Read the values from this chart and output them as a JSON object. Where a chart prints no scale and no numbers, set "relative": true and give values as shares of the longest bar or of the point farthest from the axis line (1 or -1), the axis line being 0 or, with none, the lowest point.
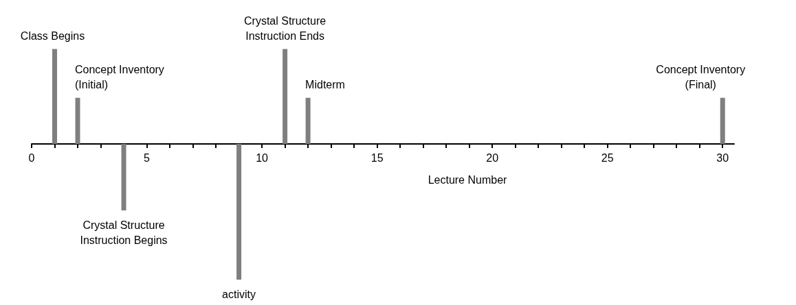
{
  "chart_data": {
    "type": "bar",
    "relative": true,
    "xlabel": "Lecture Number",
    "x": [
      1,
      2,
      4,
      9,
      11,
      12,
      30
    ],
    "values": [
      0.7,
      0.34,
      -0.49,
      -1,
      0.7,
      0.34,
      0.34
    ],
    "color": "#7f7f7f",
    "xlim": [
      0,
      30.5
    ],
    "xticks": [
      0,
      {
        "value": 1,
        "label": null
      },
      {
        "value": 2,
        "label": null
      },
      {
        "value": 3,
        "label": null
      },
      {
        "value": 4,
        "label": null
      },
      5,
      {
        "value": 6,
        "label": null
      },
      {
        "value": 7,
        "label": null
      },
      {
        "value": 8,
        "label": null
      },
      {
        "value": 9,
        "label": null
      },
      10,
      {
        "value": 11,
        "label": null
      },
      {
        "value": 12,
        "label": null
      },
      {
        "value": 13,
        "label": null
      },
      {
        "value": 14,
        "label": null
      },
      15,
      {
        "value": 16,
        "label": null
      },
      {
        "value": 17,
        "label": null
      },
      {
        "value": 18,
        "label": null
      },
      {
        "value": 19,
        "label": null
      },
      20,
      {
        "value": 21,
        "label": null
      },
      {
        "value": 22,
        "label": null
      },
      {
        "value": 23,
        "label": null
      },
      {
        "value": 24,
        "label": null
      },
      25,
      {
        "value": 26,
        "label": null
      },
      {
        "value": 27,
        "label": null
      },
      {
        "value": 28,
        "label": null
      },
      {
        "value": 29,
        "label": null
      },
      30
    ],
    "annotations": [
      {
        "text": "Class Begins",
        "x": 1,
        "y": 0.7
      },
      {
        "text": "Concept Inventory\n(Initial)",
        "x": 2,
        "y": 0.34
      },
      {
        "text": "Crystal Structure\nInstruction Begins",
        "x": 4,
        "y": -0.49
      },
      {
        "text": "activity",
        "x": 9,
        "y": -1
      },
      {
        "text": "Crystal Structure\nInstruction Ends",
        "x": 11,
        "y": 0.7
      },
      {
        "text": "Midterm",
        "x": 12,
        "y": 0.34
      },
      {
        "text": "Concept Inventory\n(Final)",
        "x": 30,
        "y": 0.34
      }
    ]
  }
}
